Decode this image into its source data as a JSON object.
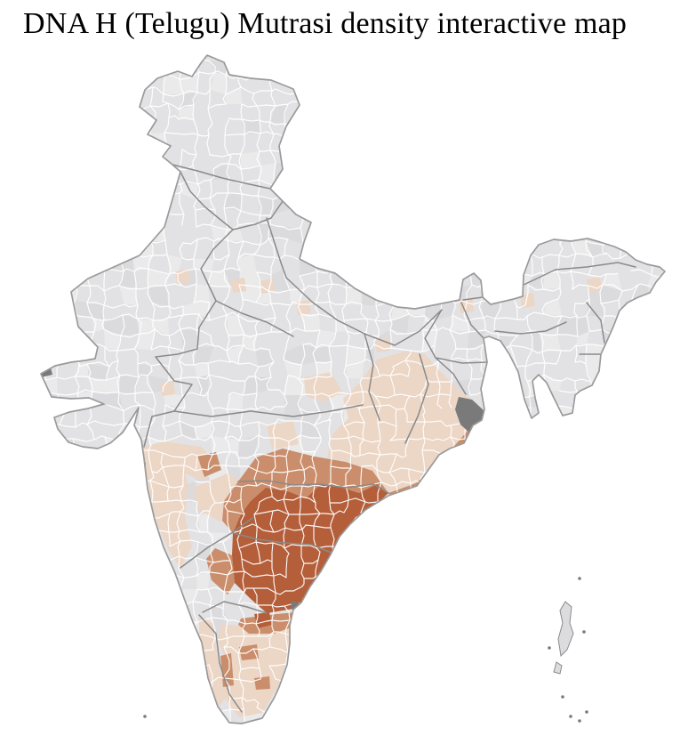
{
  "title": "DNA H (Telugu) Mutrasi density interactive map",
  "map": {
    "region": "India district-level choropleth",
    "type": "choropleth",
    "palette": {
      "background": "#ffffff",
      "title_color": "#000000",
      "land_base": "#e2e2e4",
      "district_border": "#ffffff",
      "state_border": "#8a8a8a",
      "outer_border": "#9a9a9a",
      "water_marsh": "#7a7a7a",
      "island_fill": "#dcdcde",
      "density_low": "#ecd6c6",
      "density_medium": "#ca8e6c",
      "density_high": "#b45e3a"
    },
    "density_levels": [
      "none",
      "low",
      "medium",
      "high"
    ],
    "high_density_area": "south-central India (Telangana and coastal Andhra Pradesh region)",
    "island_groups": [
      "andaman-nicobar-islands",
      "lakshadweep-island"
    ]
  }
}
